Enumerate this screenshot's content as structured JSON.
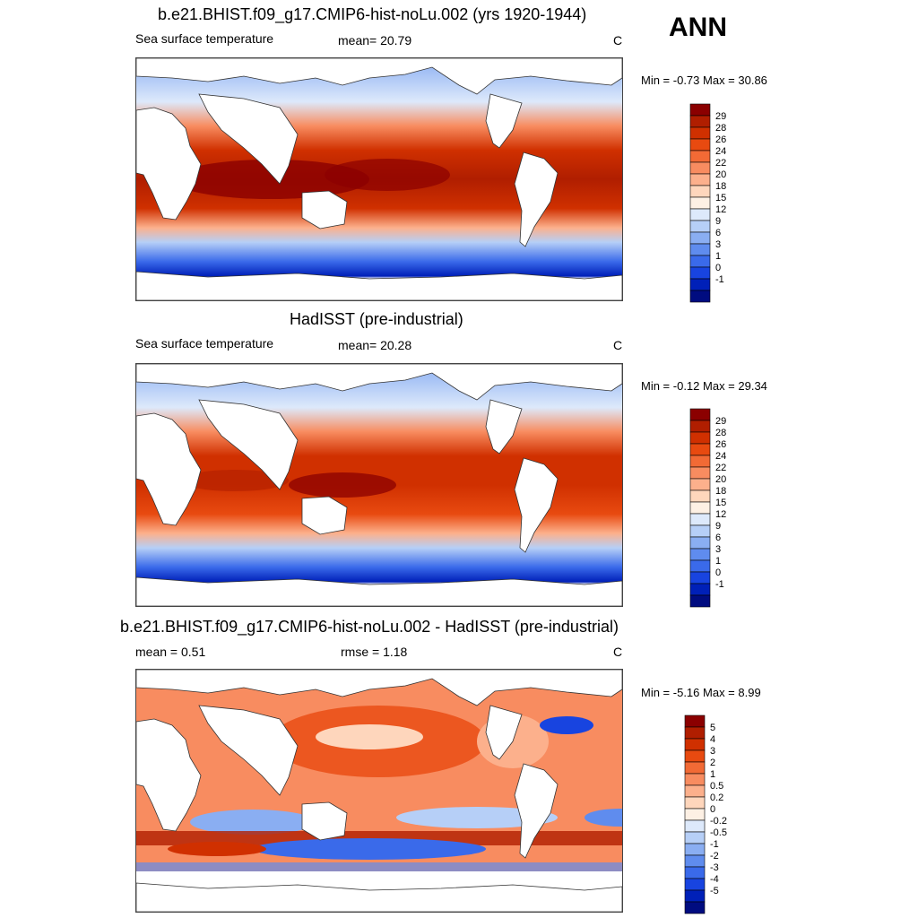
{
  "season": "ANN",
  "panels": [
    {
      "title": "b.e21.BHIST.f09_g17.CMIP6-hist-noLu.002 (yrs 1920-1944)",
      "left_label": "Sea surface temperature",
      "center_label": "mean=  20.79",
      "units": "C",
      "minmax": "Min =  -0.73 Max =  30.86",
      "colorbar": {
        "levels": [
          "29",
          "28",
          "26",
          "24",
          "22",
          "20",
          "18",
          "15",
          "12",
          "9",
          "6",
          "3",
          "1",
          "0",
          "-1"
        ],
        "colors": [
          "#8b0000",
          "#b01e00",
          "#d03000",
          "#e84a10",
          "#f26a35",
          "#f88c60",
          "#fcb08c",
          "#fed6bc",
          "#fdf0e4",
          "#dde9fb",
          "#b6cff7",
          "#8aaef2",
          "#5f8cee",
          "#3a6aea",
          "#1844e0",
          "#0020b8",
          "#000c80"
        ]
      }
    },
    {
      "title": "HadISST (pre-industrial)",
      "left_label": "Sea surface temperature",
      "center_label": "mean=  20.28",
      "units": "C",
      "minmax": "Min =  -0.12 Max =  29.34",
      "colorbar": {
        "levels": [
          "29",
          "28",
          "26",
          "24",
          "22",
          "20",
          "18",
          "15",
          "12",
          "9",
          "6",
          "3",
          "1",
          "0",
          "-1"
        ],
        "colors": [
          "#8b0000",
          "#b01e00",
          "#d03000",
          "#e84a10",
          "#f26a35",
          "#f88c60",
          "#fcb08c",
          "#fed6bc",
          "#fdf0e4",
          "#dde9fb",
          "#b6cff7",
          "#8aaef2",
          "#5f8cee",
          "#3a6aea",
          "#1844e0",
          "#0020b8",
          "#000c80"
        ]
      }
    },
    {
      "title": "b.e21.BHIST.f09_g17.CMIP6-hist-noLu.002 - HadISST (pre-industrial)",
      "left_label": "mean =   0.51",
      "center_label": "rmse =   1.18",
      "units": "C",
      "minmax": "Min =  -5.16 Max =   8.99",
      "colorbar": {
        "levels": [
          "5",
          "4",
          "3",
          "2",
          "1",
          "0.5",
          "0.2",
          "0",
          "-0.2",
          "-0.5",
          "-1",
          "-2",
          "-3",
          "-4",
          "-5"
        ],
        "colors": [
          "#8b0000",
          "#b01e00",
          "#d03000",
          "#e84a10",
          "#f26a35",
          "#f88c60",
          "#fcb08c",
          "#fed6bc",
          "#fdf0e4",
          "#dde9fb",
          "#b6cff7",
          "#8aaef2",
          "#5f8cee",
          "#3a6aea",
          "#1844e0",
          "#0020b8",
          "#000c80"
        ]
      }
    }
  ]
}
